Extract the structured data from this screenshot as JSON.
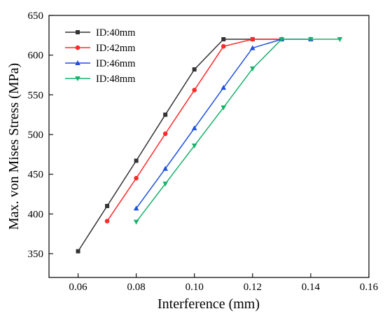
{
  "chart_data": {
    "type": "line",
    "title": "",
    "xlabel": "Interference (mm)",
    "ylabel": "Max. von Mises Stress (MPa)",
    "xlim": [
      0.05,
      0.16
    ],
    "ylim": [
      320,
      650
    ],
    "xticks": [
      "0.06",
      "0.08",
      "0.10",
      "0.12",
      "0.14",
      "0.16"
    ],
    "yticks": [
      "350",
      "400",
      "450",
      "500",
      "550",
      "600",
      "650"
    ],
    "legend_position": "top-left",
    "grid": false,
    "series": [
      {
        "name": "ID:40mm",
        "color": "#333333",
        "marker": "square",
        "x": [
          0.06,
          0.07,
          0.08,
          0.09,
          0.1,
          0.11,
          0.12,
          0.13
        ],
        "y": [
          353,
          410,
          467,
          525,
          582,
          620,
          620,
          620
        ]
      },
      {
        "name": "ID:42mm",
        "color": "#ff2a2a",
        "marker": "circle",
        "x": [
          0.07,
          0.08,
          0.09,
          0.1,
          0.11,
          0.12,
          0.13
        ],
        "y": [
          391,
          445,
          501,
          556,
          611,
          620,
          620
        ]
      },
      {
        "name": "ID:46mm",
        "color": "#1f4fe0",
        "marker": "triangle-up",
        "x": [
          0.08,
          0.09,
          0.1,
          0.11,
          0.12,
          0.13,
          0.14
        ],
        "y": [
          407,
          457,
          508,
          559,
          609,
          620,
          620
        ]
      },
      {
        "name": "ID:48mm",
        "color": "#17b26a",
        "marker": "triangle-down",
        "x": [
          0.08,
          0.09,
          0.1,
          0.11,
          0.12,
          0.13,
          0.14,
          0.15
        ],
        "y": [
          390,
          438,
          486,
          534,
          583,
          620,
          620,
          620
        ]
      }
    ]
  }
}
